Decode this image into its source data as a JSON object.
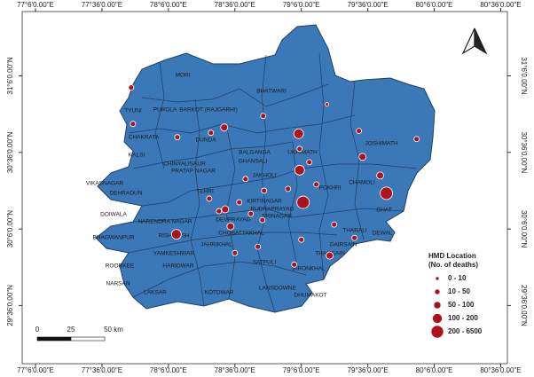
{
  "map": {
    "xlim": [
      77.0,
      80.65
    ],
    "ylim": [
      29.22,
      31.52
    ],
    "xticks": [
      {
        "value": 77.1,
        "label": "77°6'0.00\"E"
      },
      {
        "value": 77.6,
        "label": "77°36'0.00\"E"
      },
      {
        "value": 78.1,
        "label": "78°6'0.00\"E"
      },
      {
        "value": 78.6,
        "label": "78°36'0.00\"E"
      },
      {
        "value": 79.1,
        "label": "79°6'0.00\"E"
      },
      {
        "value": 79.6,
        "label": "79°36'0.00\"E"
      },
      {
        "value": 80.1,
        "label": "80°6'0.00\"E"
      },
      {
        "value": 80.6,
        "label": "80°36'0.00\"E"
      }
    ],
    "yticks": [
      {
        "value": 31.1,
        "label": "31°6'0.00\"N"
      },
      {
        "value": 30.6,
        "label": "30°36'0.00\"N"
      },
      {
        "value": 30.1,
        "label": "30°6'0.00\"N"
      },
      {
        "value": 29.6,
        "label": "29°36'0.00\"N"
      }
    ],
    "labels": [
      "MORI",
      "BHATWARI",
      "TYUNI",
      "PUROLA",
      "BARKOT (RAJGARHI)",
      "CHAKRATA",
      "DUNDA",
      "KALSI",
      "BALGANGA",
      "GHANSALI",
      "UKHIMATH",
      "JOSHIMATH",
      "CHINYALISAUR",
      "PRATAP NAGAR",
      "VIKASNAGAR",
      "DEHRADUN",
      "TEHRI",
      "JAKHOLI",
      "POKHRI",
      "CHAMOLI",
      "KIRTINAGAR",
      "RUDRAPRAYAG",
      "SRINAGAR",
      "DOIWALA",
      "NARENDRA NAGAR",
      "BHAGWANPUR",
      "RISHIKESH",
      "DEVPRAYAG",
      "CHOBATTAKHAL",
      "JAHRIKHAL",
      "GAIRSAIN",
      "THALISAIN",
      "THARALI",
      "DEWAL",
      "GHAT",
      "YAMKESHWAR",
      "ROORKEE",
      "HARIDWAR",
      "SATPULI",
      "BIRONKHAL",
      "NARSAN",
      "LAKSAR",
      "KOTDWAR",
      "LANSDOWNE",
      "DHUMAKOT"
    ],
    "point_color": "#b0101a",
    "points": [
      {
        "lon": 77.82,
        "lat": 31.024,
        "class": 1
      },
      {
        "lon": 78.813,
        "lat": 30.838,
        "class": 1
      },
      {
        "lon": 78.52,
        "lat": 30.763,
        "class": 2
      },
      {
        "lon": 78.42,
        "lat": 30.728,
        "class": 1
      },
      {
        "lon": 79.08,
        "lat": 30.722,
        "class": 3
      },
      {
        "lon": 79.293,
        "lat": 30.914,
        "class": 0
      },
      {
        "lon": 79.533,
        "lat": 30.74,
        "class": 1
      },
      {
        "lon": 79.967,
        "lat": 30.687,
        "class": 1
      },
      {
        "lon": 79.56,
        "lat": 30.571,
        "class": 2
      },
      {
        "lon": 79.087,
        "lat": 30.623,
        "class": 1
      },
      {
        "lon": 79.087,
        "lat": 30.484,
        "class": 3
      },
      {
        "lon": 79.16,
        "lat": 30.536,
        "class": 1
      },
      {
        "lon": 78.68,
        "lat": 30.426,
        "class": 1
      },
      {
        "lon": 78.82,
        "lat": 30.35,
        "class": 1
      },
      {
        "lon": 79.0,
        "lat": 30.362,
        "class": 1
      },
      {
        "lon": 79.693,
        "lat": 30.449,
        "class": 2
      },
      {
        "lon": 79.74,
        "lat": 30.333,
        "class": 4
      },
      {
        "lon": 79.213,
        "lat": 30.391,
        "class": 1
      },
      {
        "lon": 79.113,
        "lat": 30.274,
        "class": 4
      },
      {
        "lon": 78.633,
        "lat": 30.274,
        "class": 1
      },
      {
        "lon": 78.48,
        "lat": 30.216,
        "class": 1
      },
      {
        "lon": 78.527,
        "lat": 30.228,
        "class": 2
      },
      {
        "lon": 78.72,
        "lat": 30.199,
        "class": 1
      },
      {
        "lon": 78.807,
        "lat": 30.158,
        "class": 1
      },
      {
        "lon": 78.567,
        "lat": 30.117,
        "class": 2
      },
      {
        "lon": 79.347,
        "lat": 30.129,
        "class": 1
      },
      {
        "lon": 78.16,
        "lat": 30.065,
        "class": 3
      },
      {
        "lon": 79.5,
        "lat": 30.042,
        "class": 1
      },
      {
        "lon": 79.313,
        "lat": 29.926,
        "class": 2
      },
      {
        "lon": 78.6,
        "lat": 29.943,
        "class": 1
      },
      {
        "lon": 78.773,
        "lat": 29.984,
        "class": 1
      },
      {
        "lon": 77.833,
        "lat": 30.786,
        "class": 1
      },
      {
        "lon": 78.167,
        "lat": 30.699,
        "class": 1
      },
      {
        "lon": 78.407,
        "lat": 30.298,
        "class": 1
      },
      {
        "lon": 79.1,
        "lat": 30.03,
        "class": 1
      },
      {
        "lon": 79.047,
        "lat": 29.867,
        "class": 1
      }
    ],
    "legend": {
      "title": "HMD Location",
      "subtitle": "(No. of deaths)",
      "classes": [
        "0 - 10",
        "10 - 50",
        "50 - 100",
        "100 - 200",
        "200 - 6500"
      ]
    },
    "scale_bar": [
      "0",
      "25",
      "50 km"
    ]
  }
}
